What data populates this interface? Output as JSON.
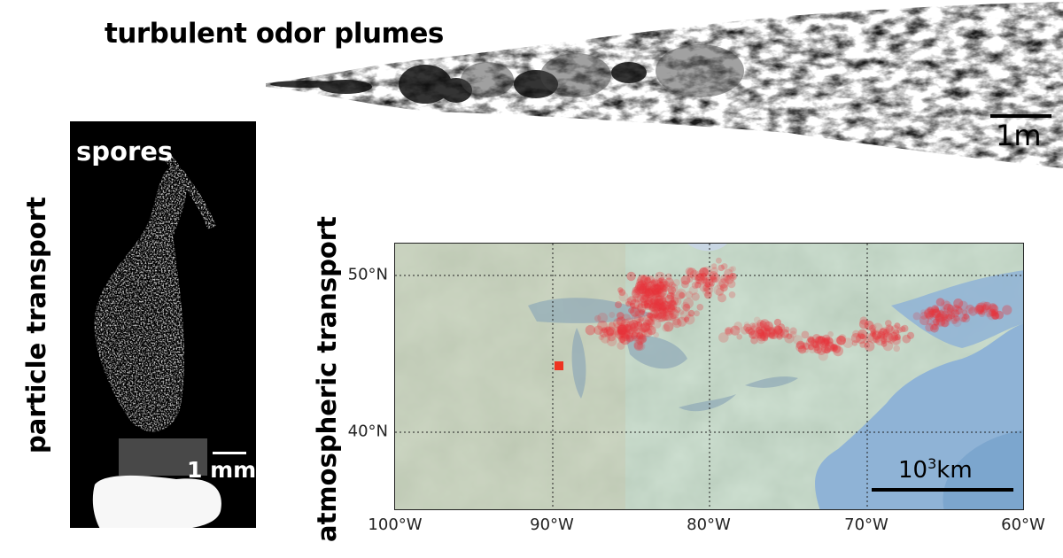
{
  "plume": {
    "title": "turbulent odor plumes",
    "scale_label": "1m"
  },
  "spores": {
    "label": "spores",
    "scale_label": "1 mm"
  },
  "side_titles": {
    "particle": "particle transport",
    "atmospheric": "atmospheric transport"
  },
  "map": {
    "x_ticks": [
      "100°W",
      "90°W",
      "80°W",
      "70°W",
      "60°W"
    ],
    "y_ticks": [
      "50°N",
      "40°N"
    ],
    "scale_label_base": "10",
    "scale_label_exp": "3",
    "scale_label_unit": "km",
    "marker_color": "#ee3322",
    "particle_color": "#e8333a",
    "water_color": "#8fb3d6",
    "land_color": "#a9c2b0"
  }
}
